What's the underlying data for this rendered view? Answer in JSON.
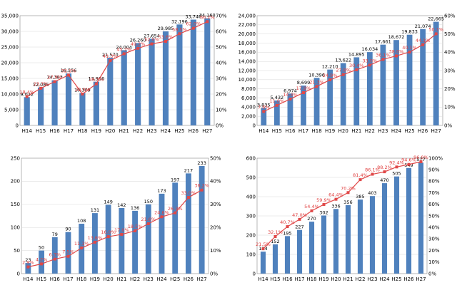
{
  "chart_data": [
    {
      "type": "bar",
      "title": "",
      "subtitle": "",
      "note": "",
      "yunit_left": "",
      "yunit_right": "",
      "categories": [
        "H14",
        "H15",
        "H16",
        "H17",
        "H18",
        "H19",
        "H20",
        "H21",
        "H22",
        "H23",
        "H24",
        "H25",
        "H26",
        "H27"
      ],
      "ylim_left": [
        0,
        35000
      ],
      "ylim_right": [
        0,
        70
      ],
      "yticks_left": [
        "0",
        "5,000",
        "10,000",
        "15,000",
        "20,000",
        "25,000",
        "30,000",
        "35,000"
      ],
      "yticks_right": [
        "0%",
        "10%",
        "20%",
        "30%",
        "40%",
        "50%",
        "60%",
        "70%"
      ],
      "series": [
        {
          "name": "",
          "axis": "left",
          "values": [
            9022,
            12086,
            14383,
            16556,
            10309,
            13936,
            21570,
            24004,
            26260,
            27654,
            29985,
            32196,
            33740,
            34160
          ],
          "labels": [
            "9,022",
            "12,086",
            "14,383",
            "16,556",
            "10,309",
            "13,936",
            "21,570",
            "24,004",
            "26,260",
            "27,654",
            "29,985",
            "32,196",
            "33,740",
            "34,160"
          ]
        },
        {
          "name": "",
          "axis": "right",
          "values": [
            18.4,
            23.7,
            27.9,
            32.1,
            20.0,
            26.5,
            41.3,
            45.7,
            49.2,
            52.0,
            53.6,
            58.5,
            62.0,
            66.2
          ],
          "labels": [
            "18.4%",
            "23.7%",
            "27.9%",
            "32.1%",
            "20.0%",
            "26.5%",
            "41.3%",
            "45.7%",
            "49.2%",
            "52.0%",
            "53.6%",
            "58.5%",
            "62.0%",
            "66.2%"
          ]
        }
      ]
    },
    {
      "type": "bar",
      "title": "",
      "subtitle": "",
      "note": "",
      "yunit_left": "",
      "yunit_right": "",
      "categories": [
        "H14",
        "H15",
        "H16",
        "H17",
        "H18",
        "H19",
        "H20",
        "H21",
        "H22",
        "H23",
        "H24",
        "H25",
        "H26",
        "H27"
      ],
      "ylim_left": [
        0,
        24000
      ],
      "ylim_right": [
        0,
        60
      ],
      "yticks_left": [
        "0",
        "2,000",
        "4,000",
        "6,000",
        "8,000",
        "10,000",
        "12,000",
        "14,000",
        "16,000",
        "18,000",
        "20,000",
        "22,000",
        "24,000"
      ],
      "yticks_right": [
        "0%",
        "10%",
        "20%",
        "30%",
        "40%",
        "50%",
        "60%"
      ],
      "series": [
        {
          "name": "",
          "axis": "left",
          "values": [
            3835,
            5432,
            6974,
            8699,
            10396,
            12210,
            13622,
            14895,
            16034,
            17661,
            18672,
            19833,
            21074,
            22665
          ],
          "labels": [
            "3,835",
            "5,432",
            "6,974",
            "8,699",
            "10,396",
            "12,210",
            "13,622",
            "14,895",
            "16,034",
            "17,661",
            "18,672",
            "19,833",
            "21,074",
            "22,665"
          ]
        },
        {
          "name": "",
          "axis": "right",
          "values": [
            7.6,
            11.0,
            14.4,
            17.9,
            21.3,
            24.9,
            27.8,
            30.4,
            33.0,
            36.1,
            38.0,
            40.1,
            44.1,
            50.1
          ],
          "labels": [
            "7.6%",
            "11.0%",
            "14.4%",
            "17.9%",
            "21.3%",
            "24.9%",
            "27.8%",
            "30.4%",
            "33.0%",
            "36.1%",
            "38.0%",
            "40.1%",
            "44.1%",
            "50.1%"
          ]
        }
      ]
    },
    {
      "type": "bar",
      "title": "",
      "subtitle": "",
      "note": "",
      "yunit_left": "",
      "yunit_right": "",
      "categories": [
        "H14",
        "H15",
        "H16",
        "H17",
        "H18",
        "H19",
        "H20",
        "H21",
        "H22",
        "H23",
        "H24",
        "H25",
        "H26",
        "H27"
      ],
      "ylim_left": [
        0,
        250
      ],
      "ylim_right": [
        0,
        50
      ],
      "yticks_left": [
        "0",
        "50",
        "100",
        "150",
        "200",
        "250"
      ],
      "yticks_right": [
        "0%",
        "10%",
        "20%",
        "30%",
        "40%",
        "50%"
      ],
      "series": [
        {
          "name": "",
          "axis": "left",
          "values": [
            23,
            50,
            79,
            90,
            108,
            131,
            149,
            142,
            136,
            150,
            173,
            197,
            217,
            233
          ],
          "labels": [
            "23",
            "50",
            "79",
            "90",
            "108",
            "131",
            "149",
            "142",
            "136",
            "150",
            "173",
            "197",
            "217",
            "233"
          ]
        },
        {
          "name": "",
          "axis": "right",
          "values": [
            2.9,
            4.2,
            6.3,
            7.5,
            11.1,
            13.6,
            16.0,
            17.0,
            18.5,
            21.6,
            24.6,
            26.3,
            33.0,
            36.2
          ],
          "labels": [
            "2.9%",
            "4.2%",
            "6.3%",
            "7.5%",
            "11.1%",
            "13.6%",
            "16.0%",
            "17.0%",
            "18.5%",
            "21.6%",
            "24.6%",
            "26.3%",
            "33.0%",
            "36.2%"
          ]
        }
      ]
    },
    {
      "type": "bar",
      "title": "",
      "subtitle": "",
      "note": "",
      "yunit_left": "",
      "yunit_right": "",
      "categories": [
        "H14",
        "H15",
        "H16",
        "H17",
        "H18",
        "H19",
        "H20",
        "H21",
        "H22",
        "H23",
        "H24",
        "H25",
        "H26",
        "H27"
      ],
      "ylim_left": [
        0,
        600
      ],
      "ylim_right": [
        0,
        100
      ],
      "yticks_left": [
        "0",
        "100",
        "200",
        "300",
        "400",
        "500",
        "600"
      ],
      "yticks_right": [
        "0%",
        "10%",
        "20%",
        "30%",
        "40%",
        "50%",
        "60%",
        "70%",
        "80%",
        "90%",
        "100%"
      ],
      "series": [
        {
          "name": "",
          "axis": "left",
          "values": [
            114,
            152,
            195,
            227,
            270,
            302,
            336,
            356,
            385,
            403,
            470,
            505,
            549,
            577
          ],
          "labels": [
            "114",
            "152",
            "195",
            "227",
            "270",
            "302",
            "336",
            "356",
            "385",
            "403",
            "470",
            "505",
            "549",
            "577"
          ]
        },
        {
          "name": "",
          "axis": "right",
          "values": [
            21.5,
            32.1,
            40.7,
            47.0,
            54.4,
            59.9,
            64.4,
            70.2,
            81.4,
            86.1,
            88.2,
            92.4,
            94.6,
            96.9
          ],
          "labels": [
            "21.5%",
            "32.1%",
            "40.7%",
            "47.0%",
            "54.4%",
            "59.9%",
            "64.4%",
            "70.2%",
            "81.4%",
            "86.1%",
            "88.2%",
            "92.4%",
            "94.6%",
            "96.9%"
          ]
        }
      ]
    }
  ]
}
